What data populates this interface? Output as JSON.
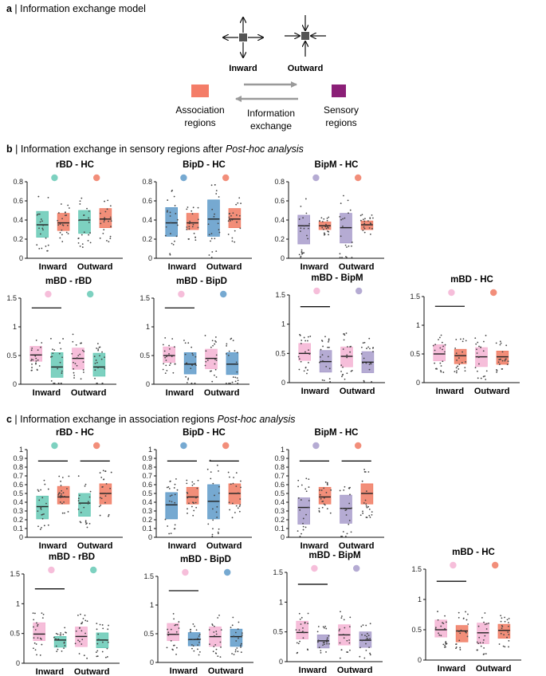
{
  "sections": {
    "a": {
      "letter": "a",
      "title": "Information exchange model"
    },
    "b": {
      "letter": "b",
      "title": "Information exchange in sensory regions after ",
      "title_italic": "Post-hoc analysis"
    },
    "c": {
      "letter": "c",
      "title": "Information exchange in association regions ",
      "title_italic": "Post-hoc analysis"
    }
  },
  "model": {
    "inward_label": "Inward",
    "outward_label": "Outward",
    "association_label_1": "Association",
    "association_label_2": "regions",
    "exchange_label_1": "Information",
    "exchange_label_2": "exchange",
    "sensory_label_1": "Sensory",
    "sensory_label_2": "regions"
  },
  "colors": {
    "HC": "#F07A62",
    "rBD": "#66C9B5",
    "BipD": "#5E9AC9",
    "BipM": "#A89CCB",
    "mBD": "#F4B3D3",
    "association_square": "#F47D68",
    "sensory_square": "#8B1F77",
    "node": "#555555",
    "arrow": "#9A9A9A"
  },
  "chart_data": [
    {
      "type": "box",
      "section": "b",
      "title": "rBD - HC",
      "categories": [
        "Inward",
        "Outward"
      ],
      "groups": [
        "rBD",
        "HC"
      ],
      "ylim": [
        0,
        0.8
      ],
      "yticks": [
        "0",
        "0.2",
        "0.4",
        "0.6",
        "0.8"
      ],
      "boxes": [
        {
          "group": "rBD",
          "category": "Inward",
          "q1": 0.22,
          "median": 0.35,
          "q3": 0.49
        },
        {
          "group": "HC",
          "category": "Inward",
          "q1": 0.29,
          "median": 0.37,
          "q3": 0.47
        },
        {
          "group": "rBD",
          "category": "Outward",
          "q1": 0.26,
          "median": 0.4,
          "q3": 0.5
        },
        {
          "group": "HC",
          "category": "Outward",
          "q1": 0.32,
          "median": 0.41,
          "q3": 0.52
        }
      ],
      "significance_bars": []
    },
    {
      "type": "box",
      "section": "b",
      "title": "BipD - HC",
      "categories": [
        "Inward",
        "Outward"
      ],
      "groups": [
        "BipD",
        "HC"
      ],
      "ylim": [
        0,
        0.8
      ],
      "yticks": [
        "0",
        "0.2",
        "0.4",
        "0.6",
        "0.8"
      ],
      "boxes": [
        {
          "group": "BipD",
          "category": "Inward",
          "q1": 0.23,
          "median": 0.37,
          "q3": 0.53
        },
        {
          "group": "HC",
          "category": "Inward",
          "q1": 0.3,
          "median": 0.37,
          "q3": 0.47
        },
        {
          "group": "BipD",
          "category": "Outward",
          "q1": 0.23,
          "median": 0.41,
          "q3": 0.61
        },
        {
          "group": "HC",
          "category": "Outward",
          "q1": 0.32,
          "median": 0.41,
          "q3": 0.52
        }
      ],
      "significance_bars": []
    },
    {
      "type": "box",
      "section": "b",
      "title": "BipM - HC",
      "categories": [
        "Inward",
        "Outward"
      ],
      "groups": [
        "BipM",
        "HC"
      ],
      "ylim": [
        0,
        0.8
      ],
      "yticks": [
        "0",
        "0.2",
        "0.4",
        "0.6",
        "0.8"
      ],
      "boxes": [
        {
          "group": "BipM",
          "category": "Inward",
          "q1": 0.15,
          "median": 0.34,
          "q3": 0.45
        },
        {
          "group": "HC",
          "category": "Inward",
          "q1": 0.3,
          "median": 0.34,
          "q3": 0.38
        },
        {
          "group": "BipM",
          "category": "Outward",
          "q1": 0.16,
          "median": 0.32,
          "q3": 0.47
        },
        {
          "group": "HC",
          "category": "Outward",
          "q1": 0.3,
          "median": 0.35,
          "q3": 0.39
        }
      ],
      "significance_bars": []
    },
    {
      "type": "box",
      "section": "b",
      "title": "mBD - rBD",
      "categories": [
        "Inward",
        "Outward"
      ],
      "groups": [
        "mBD",
        "rBD"
      ],
      "ylim": [
        0,
        1.5
      ],
      "yticks": [
        "0",
        "0.5",
        "1",
        "1.5"
      ],
      "boxes": [
        {
          "group": "mBD",
          "category": "Inward",
          "q1": 0.4,
          "median": 0.51,
          "q3": 0.66
        },
        {
          "group": "rBD",
          "category": "Inward",
          "q1": 0.12,
          "median": 0.3,
          "q3": 0.55
        },
        {
          "group": "mBD",
          "category": "Outward",
          "q1": 0.26,
          "median": 0.45,
          "q3": 0.63
        },
        {
          "group": "rBD",
          "category": "Outward",
          "q1": 0.14,
          "median": 0.3,
          "q3": 0.54
        }
      ],
      "significance_bars": [
        {
          "y": 1.33,
          "from": "mBD-Inward",
          "to": "rBD-Inward"
        }
      ]
    },
    {
      "type": "box",
      "section": "b",
      "title": "mBD - BipD",
      "categories": [
        "Inward",
        "Outward"
      ],
      "groups": [
        "mBD",
        "BipD"
      ],
      "ylim": [
        0,
        1.5
      ],
      "yticks": [
        "0",
        "0.5",
        "1",
        "1.5"
      ],
      "boxes": [
        {
          "group": "mBD",
          "category": "Inward",
          "q1": 0.38,
          "median": 0.5,
          "q3": 0.65
        },
        {
          "group": "BipD",
          "category": "Inward",
          "q1": 0.18,
          "median": 0.35,
          "q3": 0.55
        },
        {
          "group": "mBD",
          "category": "Outward",
          "q1": 0.27,
          "median": 0.45,
          "q3": 0.61
        },
        {
          "group": "BipD",
          "category": "Outward",
          "q1": 0.17,
          "median": 0.35,
          "q3": 0.55
        }
      ],
      "significance_bars": [
        {
          "y": 1.33,
          "from": "mBD-Inward",
          "to": "BipD-Inward"
        }
      ]
    },
    {
      "type": "box",
      "section": "b",
      "title": "mBD - BipM",
      "categories": [
        "Inward",
        "Outward"
      ],
      "groups": [
        "mBD",
        "BipM"
      ],
      "ylim": [
        0,
        1.5
      ],
      "yticks": [
        "0",
        "0.5",
        "1",
        "1.5"
      ],
      "boxes": [
        {
          "group": "mBD",
          "category": "Inward",
          "q1": 0.38,
          "median": 0.5,
          "q3": 0.67
        },
        {
          "group": "BipM",
          "category": "Inward",
          "q1": 0.18,
          "median": 0.36,
          "q3": 0.55
        },
        {
          "group": "mBD",
          "category": "Outward",
          "q1": 0.27,
          "median": 0.45,
          "q3": 0.61
        },
        {
          "group": "BipM",
          "category": "Outward",
          "q1": 0.17,
          "median": 0.35,
          "q3": 0.53
        }
      ],
      "significance_bars": [
        {
          "y": 1.3,
          "from": "mBD-Inward",
          "to": "BipM-Inward"
        }
      ]
    },
    {
      "type": "box",
      "section": "b",
      "title": "mBD - HC",
      "categories": [
        "Inward",
        "Outward"
      ],
      "groups": [
        "mBD",
        "HC"
      ],
      "ylim": [
        0,
        1.5
      ],
      "yticks": [
        "0",
        "0.5",
        "1",
        "1.5"
      ],
      "boxes": [
        {
          "group": "mBD",
          "category": "Inward",
          "q1": 0.38,
          "median": 0.5,
          "q3": 0.66
        },
        {
          "group": "HC",
          "category": "Inward",
          "q1": 0.33,
          "median": 0.47,
          "q3": 0.58
        },
        {
          "group": "mBD",
          "category": "Outward",
          "q1": 0.28,
          "median": 0.45,
          "q3": 0.61
        },
        {
          "group": "HC",
          "category": "Outward",
          "q1": 0.32,
          "median": 0.45,
          "q3": 0.55
        }
      ],
      "significance_bars": [
        {
          "y": 1.33,
          "from": "mBD-Inward",
          "to": "HC-Inward"
        }
      ]
    },
    {
      "type": "box",
      "section": "c",
      "title": "rBD - HC",
      "categories": [
        "Inward",
        "Outward"
      ],
      "groups": [
        "rBD",
        "HC"
      ],
      "ylim": [
        0,
        1
      ],
      "yticks": [
        "0",
        "0.1",
        "0.2",
        "0.3",
        "0.4",
        "0.5",
        "0.6",
        "0.7",
        "0.8",
        "0.9",
        "1"
      ],
      "boxes": [
        {
          "group": "rBD",
          "category": "Inward",
          "q1": 0.21,
          "median": 0.35,
          "q3": 0.47
        },
        {
          "group": "HC",
          "category": "Inward",
          "q1": 0.38,
          "median": 0.46,
          "q3": 0.58
        },
        {
          "group": "rBD",
          "category": "Outward",
          "q1": 0.24,
          "median": 0.39,
          "q3": 0.5
        },
        {
          "group": "HC",
          "category": "Outward",
          "q1": 0.38,
          "median": 0.5,
          "q3": 0.61
        }
      ],
      "significance_bars": [
        {
          "y": 0.87,
          "from": "rBD-Inward",
          "to": "HC-Inward"
        },
        {
          "y": 0.87,
          "from": "rBD-Outward",
          "to": "HC-Outward"
        }
      ]
    },
    {
      "type": "box",
      "section": "c",
      "title": "BipD - HC",
      "categories": [
        "Inward",
        "Outward"
      ],
      "groups": [
        "BipD",
        "HC"
      ],
      "ylim": [
        0,
        1
      ],
      "yticks": [
        "0",
        "0.1",
        "0.2",
        "0.3",
        "0.4",
        "0.5",
        "0.6",
        "0.7",
        "0.8",
        "0.9",
        "1"
      ],
      "boxes": [
        {
          "group": "BipD",
          "category": "Inward",
          "q1": 0.21,
          "median": 0.37,
          "q3": 0.51
        },
        {
          "group": "HC",
          "category": "Inward",
          "q1": 0.38,
          "median": 0.46,
          "q3": 0.57
        },
        {
          "group": "BipD",
          "category": "Outward",
          "q1": 0.21,
          "median": 0.41,
          "q3": 0.6
        },
        {
          "group": "HC",
          "category": "Outward",
          "q1": 0.38,
          "median": 0.5,
          "q3": 0.61
        }
      ],
      "significance_bars": [
        {
          "y": 0.87,
          "from": "BipD-Inward",
          "to": "HC-Inward"
        },
        {
          "y": 0.87,
          "from": "BipD-Outward",
          "to": "HC-Outward"
        }
      ]
    },
    {
      "type": "box",
      "section": "c",
      "title": "BipM - HC",
      "categories": [
        "Inward",
        "Outward"
      ],
      "groups": [
        "BipM",
        "HC"
      ],
      "ylim": [
        0,
        1
      ],
      "yticks": [
        "0",
        "0.1",
        "0.2",
        "0.3",
        "0.4",
        "0.5",
        "0.6",
        "0.7",
        "0.8",
        "0.9",
        "1"
      ],
      "boxes": [
        {
          "group": "BipM",
          "category": "Inward",
          "q1": 0.15,
          "median": 0.34,
          "q3": 0.45
        },
        {
          "group": "HC",
          "category": "Inward",
          "q1": 0.38,
          "median": 0.46,
          "q3": 0.57
        },
        {
          "group": "BipM",
          "category": "Outward",
          "q1": 0.16,
          "median": 0.33,
          "q3": 0.48
        },
        {
          "group": "HC",
          "category": "Outward",
          "q1": 0.38,
          "median": 0.5,
          "q3": 0.61
        }
      ],
      "significance_bars": [
        {
          "y": 0.87,
          "from": "BipM-Inward",
          "to": "HC-Inward"
        },
        {
          "y": 0.87,
          "from": "BipM-Outward",
          "to": "HC-Outward"
        }
      ]
    },
    {
      "type": "box",
      "section": "c",
      "title": "mBD - rBD",
      "categories": [
        "Inward",
        "Outward"
      ],
      "groups": [
        "mBD",
        "rBD"
      ],
      "ylim": [
        0,
        1.5
      ],
      "yticks": [
        "0",
        "0.5",
        "1",
        "1.5"
      ],
      "boxes": [
        {
          "group": "mBD",
          "category": "Inward",
          "q1": 0.38,
          "median": 0.49,
          "q3": 0.68
        },
        {
          "group": "rBD",
          "category": "Inward",
          "q1": 0.27,
          "median": 0.39,
          "q3": 0.45
        },
        {
          "group": "mBD",
          "category": "Outward",
          "q1": 0.28,
          "median": 0.45,
          "q3": 0.61
        },
        {
          "group": "rBD",
          "category": "Outward",
          "q1": 0.26,
          "median": 0.39,
          "q3": 0.51
        }
      ],
      "significance_bars": [
        {
          "y": 1.25,
          "from": "mBD-Inward",
          "to": "rBD-Inward"
        }
      ]
    },
    {
      "type": "box",
      "section": "c",
      "title": "mBD - BipD",
      "categories": [
        "Inward",
        "Outward"
      ],
      "groups": [
        "mBD",
        "BipD"
      ],
      "ylim": [
        0,
        1.5
      ],
      "yticks": [
        "0",
        "0.5",
        "1",
        "1.5"
      ],
      "boxes": [
        {
          "group": "mBD",
          "category": "Inward",
          "q1": 0.38,
          "median": 0.49,
          "q3": 0.68
        },
        {
          "group": "BipD",
          "category": "Inward",
          "q1": 0.29,
          "median": 0.4,
          "q3": 0.52
        },
        {
          "group": "mBD",
          "category": "Outward",
          "q1": 0.28,
          "median": 0.45,
          "q3": 0.62
        },
        {
          "group": "BipD",
          "category": "Outward",
          "q1": 0.28,
          "median": 0.45,
          "q3": 0.58
        }
      ],
      "significance_bars": [
        {
          "y": 1.25,
          "from": "mBD-Inward",
          "to": "BipD-Inward"
        }
      ]
    },
    {
      "type": "box",
      "section": "c",
      "title": "mBD - BipM",
      "categories": [
        "Inward",
        "Outward"
      ],
      "groups": [
        "mBD",
        "BipM"
      ],
      "ylim": [
        0,
        1.5
      ],
      "yticks": [
        "0",
        "0.5",
        "1",
        "1.5"
      ],
      "boxes": [
        {
          "group": "mBD",
          "category": "Inward",
          "q1": 0.38,
          "median": 0.49,
          "q3": 0.68
        },
        {
          "group": "BipM",
          "category": "Inward",
          "q1": 0.23,
          "median": 0.35,
          "q3": 0.45
        },
        {
          "group": "mBD",
          "category": "Outward",
          "q1": 0.28,
          "median": 0.45,
          "q3": 0.62
        },
        {
          "group": "BipM",
          "category": "Outward",
          "q1": 0.24,
          "median": 0.36,
          "q3": 0.5
        }
      ],
      "significance_bars": [
        {
          "y": 1.3,
          "from": "mBD-Inward",
          "to": "BipM-Inward"
        }
      ]
    },
    {
      "type": "box",
      "section": "c",
      "title": "mBD - HC",
      "categories": [
        "Inward",
        "Outward"
      ],
      "groups": [
        "mBD",
        "HC"
      ],
      "ylim": [
        0,
        1.5
      ],
      "yticks": [
        "0",
        "0.5",
        "1",
        "1.5"
      ],
      "boxes": [
        {
          "group": "mBD",
          "category": "Inward",
          "q1": 0.38,
          "median": 0.5,
          "q3": 0.66
        },
        {
          "group": "HC",
          "category": "Inward",
          "q1": 0.3,
          "median": 0.48,
          "q3": 0.57
        },
        {
          "group": "mBD",
          "category": "Outward",
          "q1": 0.27,
          "median": 0.45,
          "q3": 0.61
        },
        {
          "group": "HC",
          "category": "Outward",
          "q1": 0.36,
          "median": 0.49,
          "q3": 0.59
        }
      ],
      "significance_bars": [
        {
          "y": 1.3,
          "from": "mBD-Inward",
          "to": "HC-Inward"
        }
      ]
    }
  ]
}
